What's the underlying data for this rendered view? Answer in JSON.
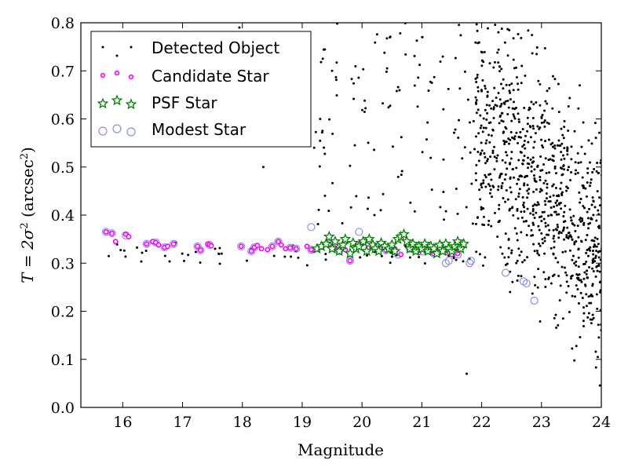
{
  "chart_data": {
    "type": "scatter",
    "xlabel": "Magnitude",
    "ylabel": {
      "base": "T = 2σ",
      "sup": "2",
      "mid": " (arcsec",
      "sup2": "2",
      "end": ")"
    },
    "xlim": [
      15.3,
      24
    ],
    "ylim": [
      0,
      0.8
    ],
    "xticks": [
      "16",
      "17",
      "18",
      "19",
      "20",
      "21",
      "22",
      "23",
      "24"
    ],
    "yticks": [
      "0.0",
      "0.1",
      "0.2",
      "0.3",
      "0.4",
      "0.5",
      "0.6",
      "0.7",
      "0.8"
    ],
    "legend": {
      "position": "top-left",
      "entries": [
        "Detected Object",
        "Candidate Star",
        "PSF Star",
        "Modest Star"
      ]
    },
    "colors": {
      "detected": "#000000",
      "candidate": "#ff00ff",
      "psf": "#008000",
      "modest": "#8c8cf0"
    },
    "series": [
      {
        "name": "Candidate Star",
        "x": [
          15.72,
          15.82,
          15.88,
          16.05,
          16.1,
          16.4,
          16.5,
          16.55,
          16.6,
          16.7,
          16.75,
          16.85,
          17.25,
          17.3,
          17.42,
          17.45,
          17.48,
          17.98,
          18.15,
          18.2,
          18.25,
          18.32,
          18.42,
          18.5,
          18.6,
          18.65,
          18.72,
          18.8,
          18.9,
          19.08,
          19.15,
          19.3,
          19.45,
          19.55,
          19.62,
          19.72,
          19.8,
          19.9,
          20.0,
          20.1,
          20.2,
          20.3,
          20.4,
          20.55,
          20.65,
          20.8,
          20.95,
          21.1,
          21.2,
          21.3,
          21.4,
          21.5,
          21.6
        ],
        "y": [
          0.365,
          0.362,
          0.345,
          0.36,
          0.355,
          0.34,
          0.345,
          0.343,
          0.338,
          0.333,
          0.335,
          0.34,
          0.335,
          0.327,
          0.34,
          0.338,
          0.336,
          0.335,
          0.325,
          0.333,
          0.337,
          0.33,
          0.328,
          0.335,
          0.345,
          0.338,
          0.33,
          0.332,
          0.33,
          0.335,
          0.328,
          0.333,
          0.34,
          0.332,
          0.325,
          0.328,
          0.305,
          0.335,
          0.34,
          0.332,
          0.335,
          0.33,
          0.327,
          0.33,
          0.318,
          0.33,
          0.322,
          0.325,
          0.32,
          0.33,
          0.322,
          0.318,
          0.32
        ]
      },
      {
        "name": "PSF Star",
        "x": [
          19.25,
          19.32,
          19.4,
          19.45,
          19.5,
          19.55,
          19.62,
          19.68,
          19.72,
          19.8,
          19.85,
          19.9,
          19.95,
          20.02,
          20.08,
          20.12,
          20.18,
          20.22,
          20.28,
          20.32,
          20.38,
          20.45,
          20.5,
          20.55,
          20.6,
          20.65,
          20.7,
          20.75,
          20.8,
          20.85,
          20.9,
          20.95,
          21.0,
          21.05,
          21.1,
          21.15,
          21.2,
          21.25,
          21.3,
          21.35,
          21.4,
          21.45,
          21.5,
          21.55,
          21.6,
          21.65,
          21.7
        ],
        "y": [
          0.33,
          0.335,
          0.34,
          0.355,
          0.33,
          0.345,
          0.325,
          0.338,
          0.35,
          0.32,
          0.342,
          0.33,
          0.335,
          0.345,
          0.325,
          0.35,
          0.338,
          0.33,
          0.325,
          0.342,
          0.335,
          0.33,
          0.338,
          0.325,
          0.35,
          0.355,
          0.36,
          0.345,
          0.33,
          0.34,
          0.325,
          0.335,
          0.33,
          0.34,
          0.325,
          0.335,
          0.33,
          0.32,
          0.338,
          0.325,
          0.34,
          0.33,
          0.325,
          0.335,
          0.345,
          0.33,
          0.34
        ]
      },
      {
        "name": "Modest Star",
        "x": [
          15.72,
          15.82,
          16.05,
          16.4,
          16.55,
          16.7,
          16.85,
          17.25,
          17.3,
          17.45,
          17.98,
          18.15,
          18.2,
          18.5,
          18.6,
          18.8,
          18.9,
          19.15,
          19.15,
          19.45,
          19.62,
          19.8,
          19.9,
          19.95,
          20.2,
          20.4,
          20.6,
          20.8,
          21.0,
          21.2,
          21.4,
          21.45,
          21.6,
          21.8,
          21.82,
          22.4,
          22.7,
          22.75,
          22.88
        ],
        "y": [
          0.365,
          0.362,
          0.358,
          0.34,
          0.343,
          0.333,
          0.34,
          0.335,
          0.327,
          0.338,
          0.335,
          0.325,
          0.333,
          0.335,
          0.345,
          0.332,
          0.33,
          0.375,
          0.328,
          0.34,
          0.325,
          0.305,
          0.335,
          0.365,
          0.335,
          0.327,
          0.318,
          0.33,
          0.325,
          0.32,
          0.3,
          0.305,
          0.318,
          0.3,
          0.305,
          0.28,
          0.262,
          0.258,
          0.222
        ]
      }
    ]
  }
}
